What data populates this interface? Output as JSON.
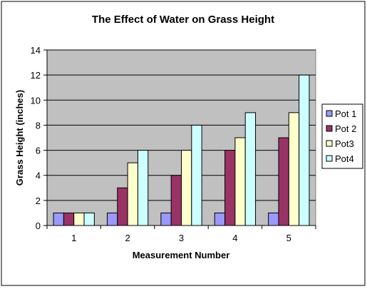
{
  "chart_data": {
    "type": "bar",
    "title": "The Effect of Water on Grass Height",
    "xlabel": "Measurement Number",
    "ylabel": "Grass Height (inches)",
    "categories": [
      "1",
      "2",
      "3",
      "4",
      "5"
    ],
    "ylim": [
      0,
      14
    ],
    "yticks": [
      0,
      2,
      4,
      6,
      8,
      10,
      12,
      14
    ],
    "grid": true,
    "legend_position": "right",
    "series": [
      {
        "name": "Pot 1",
        "color": "#9999ff",
        "values": [
          1,
          1,
          1,
          1,
          1
        ]
      },
      {
        "name": "Pot 2",
        "color": "#993366",
        "values": [
          1,
          3,
          4,
          6,
          7
        ]
      },
      {
        "name": "Pot3",
        "color": "#ffffcc",
        "values": [
          1,
          5,
          6,
          7,
          9
        ]
      },
      {
        "name": "Pot4",
        "color": "#ccffff",
        "values": [
          1,
          6,
          8,
          9,
          12
        ]
      }
    ],
    "plot_background": "#c0c0c0"
  }
}
